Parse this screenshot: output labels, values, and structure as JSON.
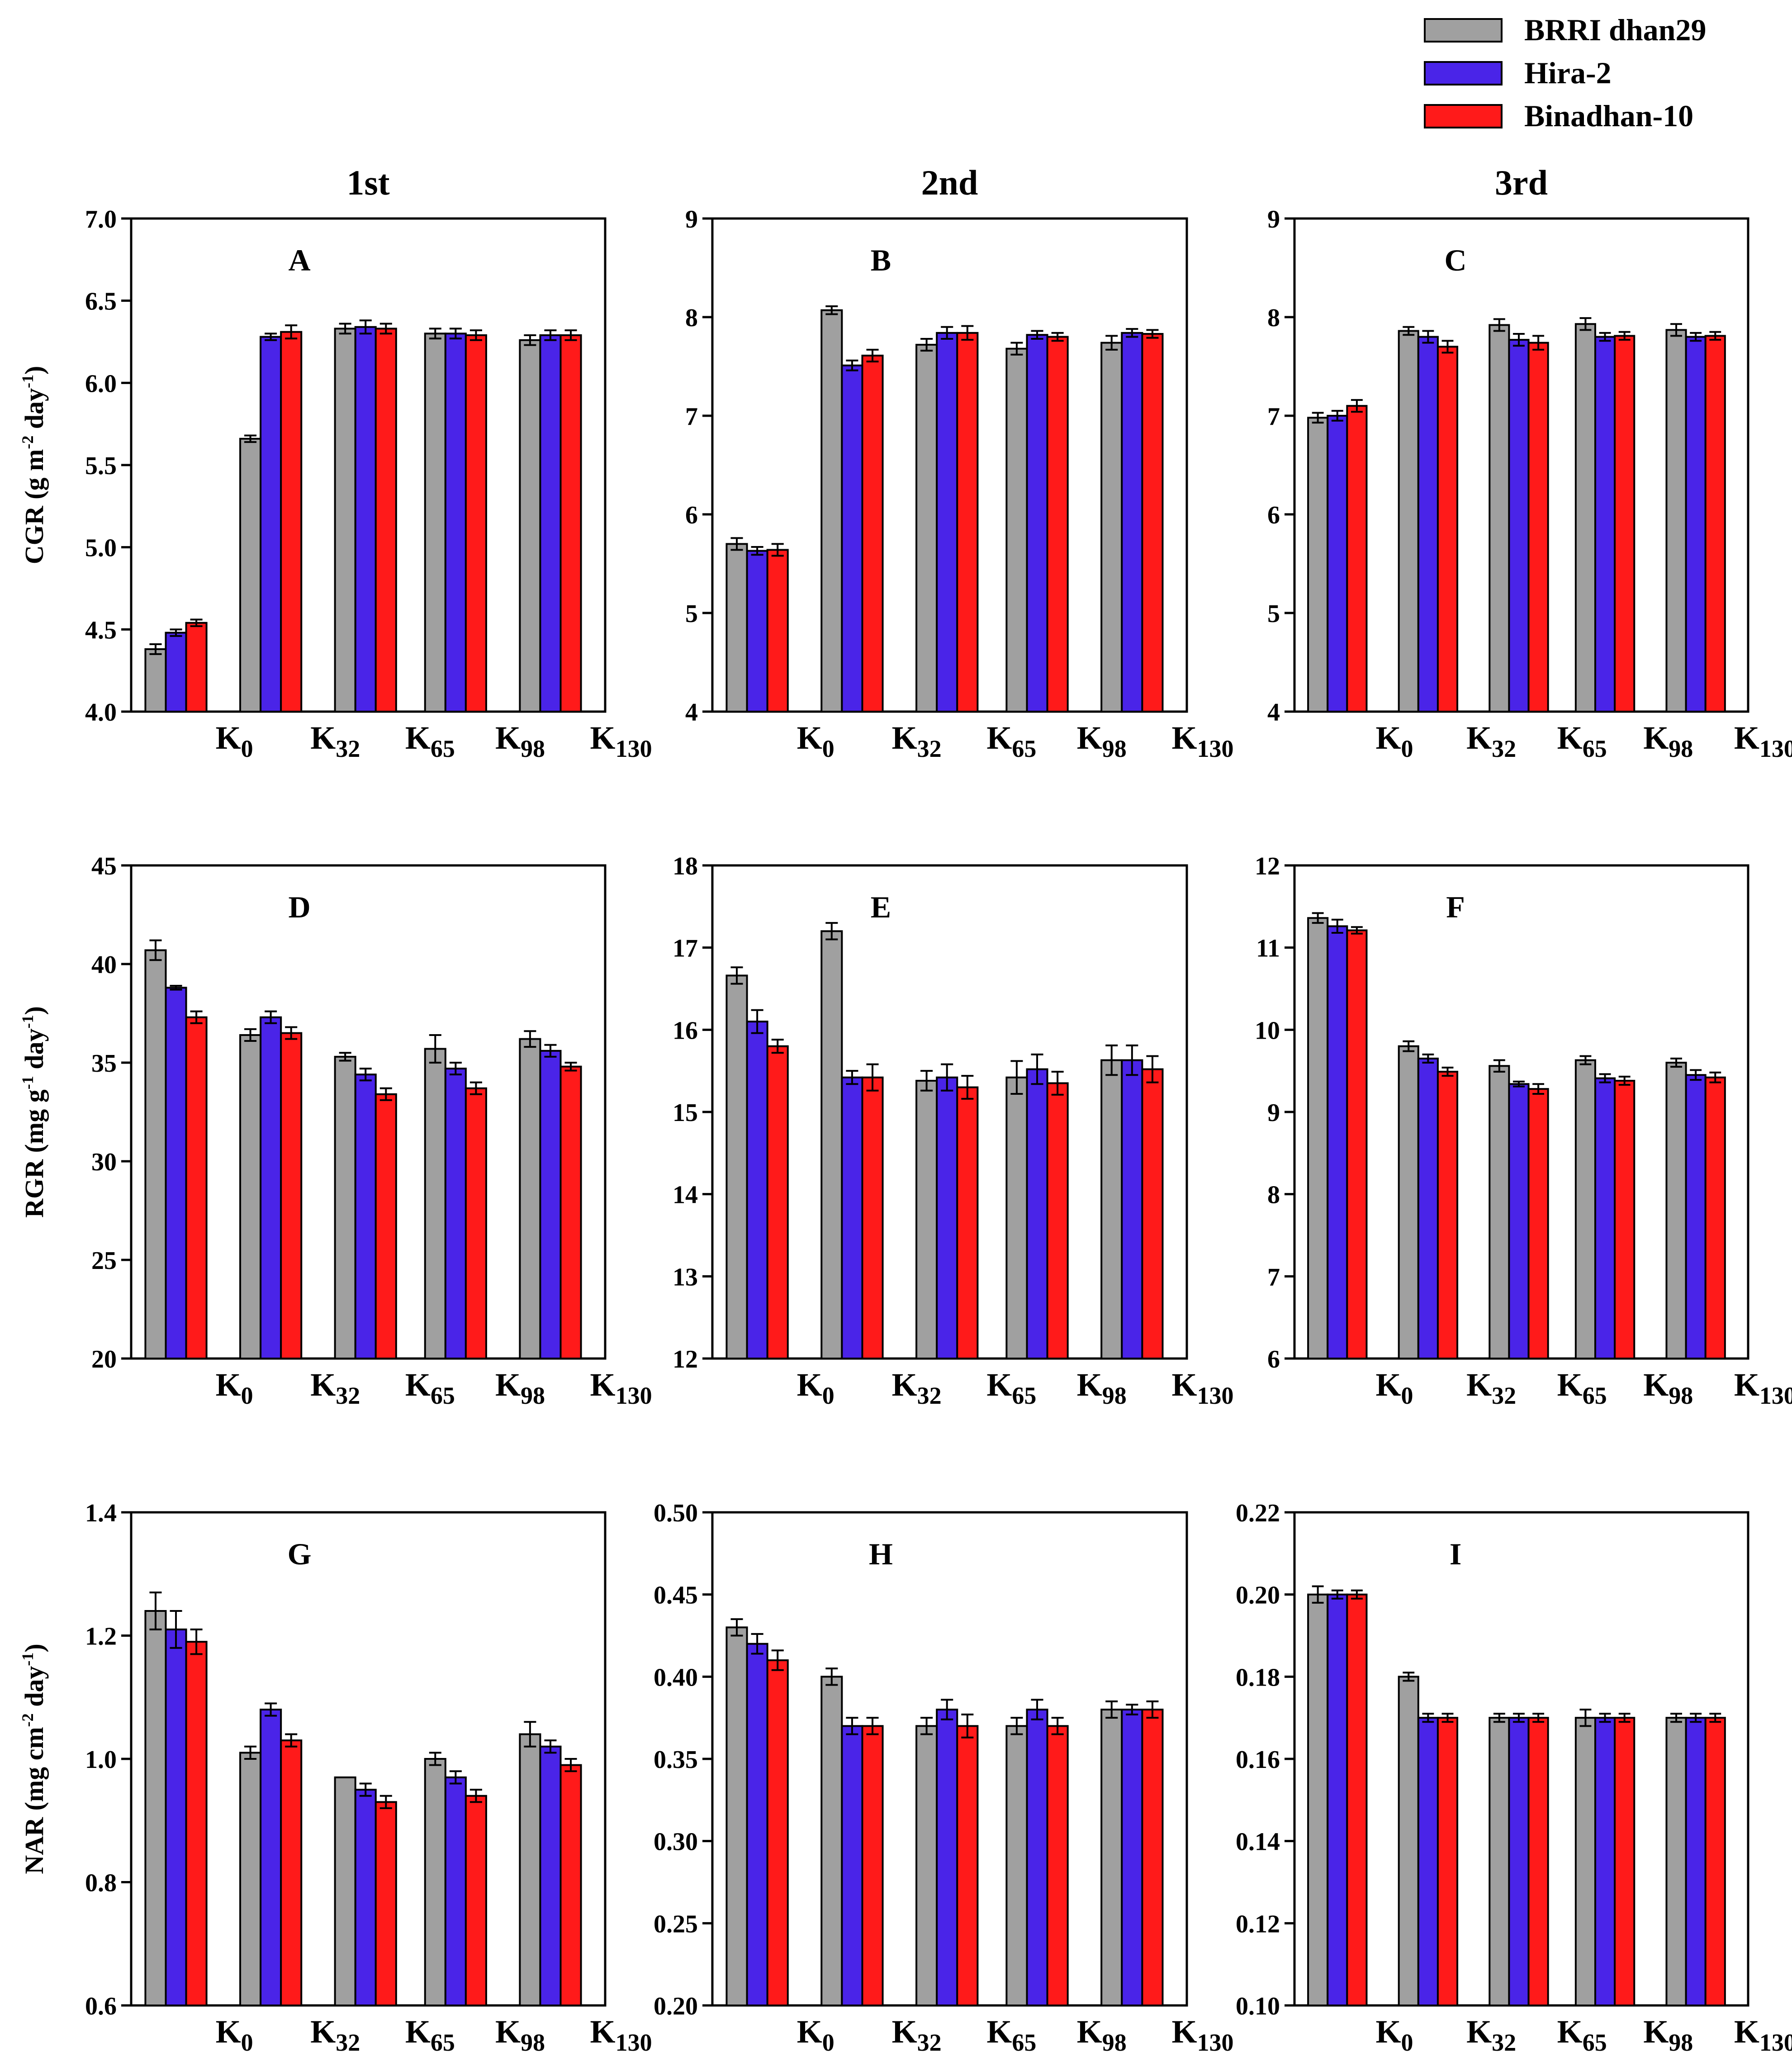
{
  "legend": [
    {
      "label": "BRRI dhan29",
      "color": "#a0a0a0"
    },
    {
      "label": "Hira-2",
      "color": "#4a24e8"
    },
    {
      "label": "Binadhan-10",
      "color": "#ff1a1a"
    }
  ],
  "column_titles": [
    "1st",
    "2nd",
    "3rd"
  ],
  "row_ylabels": [
    {
      "main": "CGR (g m",
      "sup1": "-2",
      "mid": " day",
      "sup2": "-1",
      "end": ")"
    },
    {
      "main": "RGR (mg g",
      "sup1": "-1",
      "mid": " day",
      "sup2": "-1",
      "end": ")"
    },
    {
      "main": "NAR (mg cm",
      "sup1": "-2",
      "mid": " day",
      "sup2": "-1",
      "end": ")"
    }
  ],
  "category_labels": [
    {
      "main": "K",
      "sub": "0"
    },
    {
      "main": "K",
      "sub": "32"
    },
    {
      "main": "K",
      "sub": "65"
    },
    {
      "main": "K",
      "sub": "98"
    },
    {
      "main": "K",
      "sub": "130"
    }
  ],
  "chart_data": [
    {
      "panel": "A",
      "type": "bar",
      "row": 0,
      "col": 0,
      "ylim": [
        4.0,
        7.0
      ],
      "yticks": [
        "4.0",
        "4.5",
        "5.0",
        "5.5",
        "6.0",
        "6.5",
        "7.0"
      ],
      "series": [
        {
          "name": "BRRI dhan29",
          "values": [
            4.38,
            5.66,
            6.33,
            6.3,
            6.26
          ],
          "errors": [
            0.03,
            0.02,
            0.03,
            0.03,
            0.03
          ]
        },
        {
          "name": "Hira-2",
          "values": [
            4.48,
            6.28,
            6.34,
            6.3,
            6.29
          ],
          "errors": [
            0.02,
            0.02,
            0.04,
            0.03,
            0.03
          ]
        },
        {
          "name": "Binadhan-10",
          "values": [
            4.54,
            6.31,
            6.33,
            6.29,
            6.29
          ],
          "errors": [
            0.02,
            0.04,
            0.03,
            0.03,
            0.03
          ]
        }
      ]
    },
    {
      "panel": "B",
      "type": "bar",
      "row": 0,
      "col": 1,
      "ylim": [
        4,
        9
      ],
      "yticks": [
        "4",
        "5",
        "6",
        "7",
        "8",
        "9"
      ],
      "series": [
        {
          "name": "BRRI dhan29",
          "values": [
            5.7,
            8.07,
            7.72,
            7.68,
            7.74
          ],
          "errors": [
            0.06,
            0.04,
            0.06,
            0.06,
            0.07
          ]
        },
        {
          "name": "Hira-2",
          "values": [
            5.63,
            7.51,
            7.84,
            7.82,
            7.84
          ],
          "errors": [
            0.04,
            0.05,
            0.06,
            0.04,
            0.04
          ]
        },
        {
          "name": "Binadhan-10",
          "values": [
            5.64,
            7.61,
            7.84,
            7.8,
            7.83
          ],
          "errors": [
            0.06,
            0.06,
            0.07,
            0.04,
            0.04
          ]
        }
      ]
    },
    {
      "panel": "C",
      "type": "bar",
      "row": 0,
      "col": 2,
      "ylim": [
        4,
        9
      ],
      "yticks": [
        "4",
        "5",
        "6",
        "7",
        "8",
        "9"
      ],
      "series": [
        {
          "name": "BRRI dhan29",
          "values": [
            6.98,
            7.86,
            7.92,
            7.93,
            7.87
          ],
          "errors": [
            0.05,
            0.04,
            0.06,
            0.06,
            0.06
          ]
        },
        {
          "name": "Hira-2",
          "values": [
            7.0,
            7.8,
            7.77,
            7.8,
            7.8
          ],
          "errors": [
            0.05,
            0.06,
            0.06,
            0.04,
            0.04
          ]
        },
        {
          "name": "Binadhan-10",
          "values": [
            7.1,
            7.7,
            7.74,
            7.81,
            7.81
          ],
          "errors": [
            0.06,
            0.06,
            0.07,
            0.04,
            0.04
          ]
        }
      ]
    },
    {
      "panel": "D",
      "type": "bar",
      "row": 1,
      "col": 0,
      "ylim": [
        20,
        45
      ],
      "yticks": [
        "20",
        "25",
        "30",
        "35",
        "40",
        "45"
      ],
      "series": [
        {
          "name": "BRRI dhan29",
          "values": [
            40.7,
            36.4,
            35.3,
            35.7,
            36.2
          ],
          "errors": [
            0.5,
            0.3,
            0.2,
            0.7,
            0.4
          ]
        },
        {
          "name": "Hira-2",
          "values": [
            38.8,
            37.3,
            34.4,
            34.7,
            35.6
          ],
          "errors": [
            0.1,
            0.3,
            0.3,
            0.3,
            0.3
          ]
        },
        {
          "name": "Binadhan-10",
          "values": [
            37.3,
            36.5,
            33.4,
            33.7,
            34.8
          ],
          "errors": [
            0.3,
            0.3,
            0.3,
            0.3,
            0.2
          ]
        }
      ]
    },
    {
      "panel": "E",
      "type": "bar",
      "row": 1,
      "col": 1,
      "ylim": [
        12,
        18
      ],
      "yticks": [
        "12",
        "13",
        "14",
        "15",
        "16",
        "17",
        "18"
      ],
      "series": [
        {
          "name": "BRRI dhan29",
          "values": [
            16.66,
            17.2,
            15.38,
            15.42,
            15.63
          ],
          "errors": [
            0.1,
            0.1,
            0.12,
            0.2,
            0.18
          ]
        },
        {
          "name": "Hira-2",
          "values": [
            16.1,
            15.42,
            15.42,
            15.52,
            15.63
          ],
          "errors": [
            0.14,
            0.08,
            0.16,
            0.18,
            0.18
          ]
        },
        {
          "name": "Binadhan-10",
          "values": [
            15.8,
            15.42,
            15.3,
            15.35,
            15.52
          ],
          "errors": [
            0.08,
            0.16,
            0.14,
            0.14,
            0.16
          ]
        }
      ]
    },
    {
      "panel": "F",
      "type": "bar",
      "row": 1,
      "col": 2,
      "ylim": [
        6,
        12
      ],
      "yticks": [
        "6",
        "7",
        "8",
        "9",
        "10",
        "11",
        "12"
      ],
      "series": [
        {
          "name": "BRRI dhan29",
          "values": [
            11.36,
            9.8,
            9.56,
            9.63,
            9.6
          ],
          "errors": [
            0.06,
            0.06,
            0.07,
            0.05,
            0.05
          ]
        },
        {
          "name": "Hira-2",
          "values": [
            11.26,
            9.65,
            9.34,
            9.41,
            9.45
          ],
          "errors": [
            0.08,
            0.05,
            0.03,
            0.05,
            0.06
          ]
        },
        {
          "name": "Binadhan-10",
          "values": [
            11.21,
            9.49,
            9.28,
            9.38,
            9.42
          ],
          "errors": [
            0.04,
            0.05,
            0.06,
            0.05,
            0.06
          ]
        }
      ]
    },
    {
      "panel": "G",
      "type": "bar",
      "row": 2,
      "col": 0,
      "ylim": [
        0.6,
        1.4
      ],
      "yticks": [
        "0.6",
        "0.8",
        "1.0",
        "1.2",
        "1.4"
      ],
      "series": [
        {
          "name": "BRRI dhan29",
          "values": [
            1.24,
            1.01,
            0.97,
            1.0,
            1.04
          ],
          "errors": [
            0.03,
            0.01,
            0.0,
            0.01,
            0.02
          ]
        },
        {
          "name": "Hira-2",
          "values": [
            1.21,
            1.08,
            0.95,
            0.97,
            1.02
          ],
          "errors": [
            0.03,
            0.01,
            0.01,
            0.01,
            0.01
          ]
        },
        {
          "name": "Binadhan-10",
          "values": [
            1.19,
            1.03,
            0.93,
            0.94,
            0.99
          ],
          "errors": [
            0.02,
            0.01,
            0.01,
            0.01,
            0.01
          ]
        }
      ]
    },
    {
      "panel": "H",
      "type": "bar",
      "row": 2,
      "col": 1,
      "ylim": [
        0.2,
        0.5
      ],
      "yticks": [
        "0.20",
        "0.25",
        "0.30",
        "0.35",
        "0.40",
        "0.45",
        "0.50"
      ],
      "series": [
        {
          "name": "BRRI dhan29",
          "values": [
            0.43,
            0.4,
            0.37,
            0.37,
            0.38
          ],
          "errors": [
            0.005,
            0.005,
            0.005,
            0.005,
            0.005
          ]
        },
        {
          "name": "Hira-2",
          "values": [
            0.42,
            0.37,
            0.38,
            0.38,
            0.38
          ],
          "errors": [
            0.006,
            0.005,
            0.006,
            0.006,
            0.003
          ]
        },
        {
          "name": "Binadhan-10",
          "values": [
            0.41,
            0.37,
            0.37,
            0.37,
            0.38
          ],
          "errors": [
            0.006,
            0.005,
            0.007,
            0.005,
            0.005
          ]
        }
      ]
    },
    {
      "panel": "I",
      "type": "bar",
      "row": 2,
      "col": 2,
      "ylim": [
        0.1,
        0.22
      ],
      "yticks": [
        "0.10",
        "0.12",
        "0.14",
        "0.16",
        "0.18",
        "0.20",
        "0.22"
      ],
      "series": [
        {
          "name": "BRRI dhan29",
          "values": [
            0.2,
            0.18,
            0.17,
            0.17,
            0.17
          ],
          "errors": [
            0.002,
            0.001,
            0.001,
            0.002,
            0.001
          ]
        },
        {
          "name": "Hira-2",
          "values": [
            0.2,
            0.17,
            0.17,
            0.17,
            0.17
          ],
          "errors": [
            0.001,
            0.001,
            0.001,
            0.001,
            0.001
          ]
        },
        {
          "name": "Binadhan-10",
          "values": [
            0.2,
            0.17,
            0.17,
            0.17,
            0.17
          ],
          "errors": [
            0.001,
            0.001,
            0.001,
            0.001,
            0.001
          ]
        }
      ]
    }
  ]
}
